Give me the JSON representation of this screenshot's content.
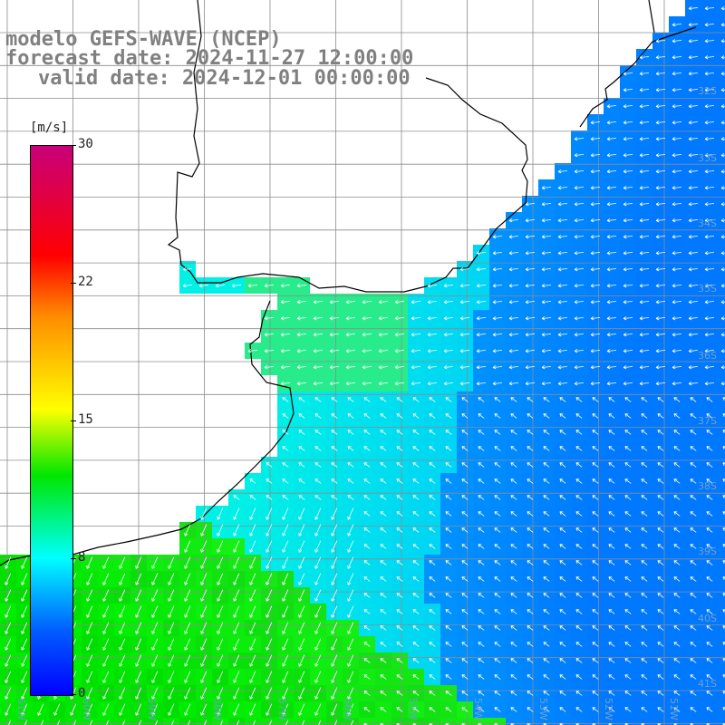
{
  "header": {
    "model": "modelo GEFS-WAVE (NCEP)",
    "forecast": "forecast date: 2024-11-27 12:00:00",
    "valid": "valid date: 2024-12-01 00:00:00"
  },
  "legend": {
    "unit": "[m/s]",
    "ticks": [
      "30",
      "22",
      "15",
      "8",
      "0"
    ],
    "colors": [
      "#c8007a",
      "#ff0000",
      "#ff8c00",
      "#ffff00",
      "#00e600",
      "#00ffff",
      "#0060ff",
      "#0000ff"
    ]
  },
  "lat_labels": [
    "32S",
    "33S",
    "34S",
    "35S",
    "36S",
    "37S",
    "38S",
    "39S",
    "40S",
    "41S"
  ],
  "lon_labels": [
    "61W",
    "60W",
    "59W",
    "58W",
    "57W",
    "56W",
    "55W",
    "54W",
    "53W",
    "52W",
    "51W"
  ],
  "map_colors": {
    "land": "#ffffff",
    "coast": "#000000",
    "grid": "#808080",
    "arrow": "#ffffff"
  }
}
